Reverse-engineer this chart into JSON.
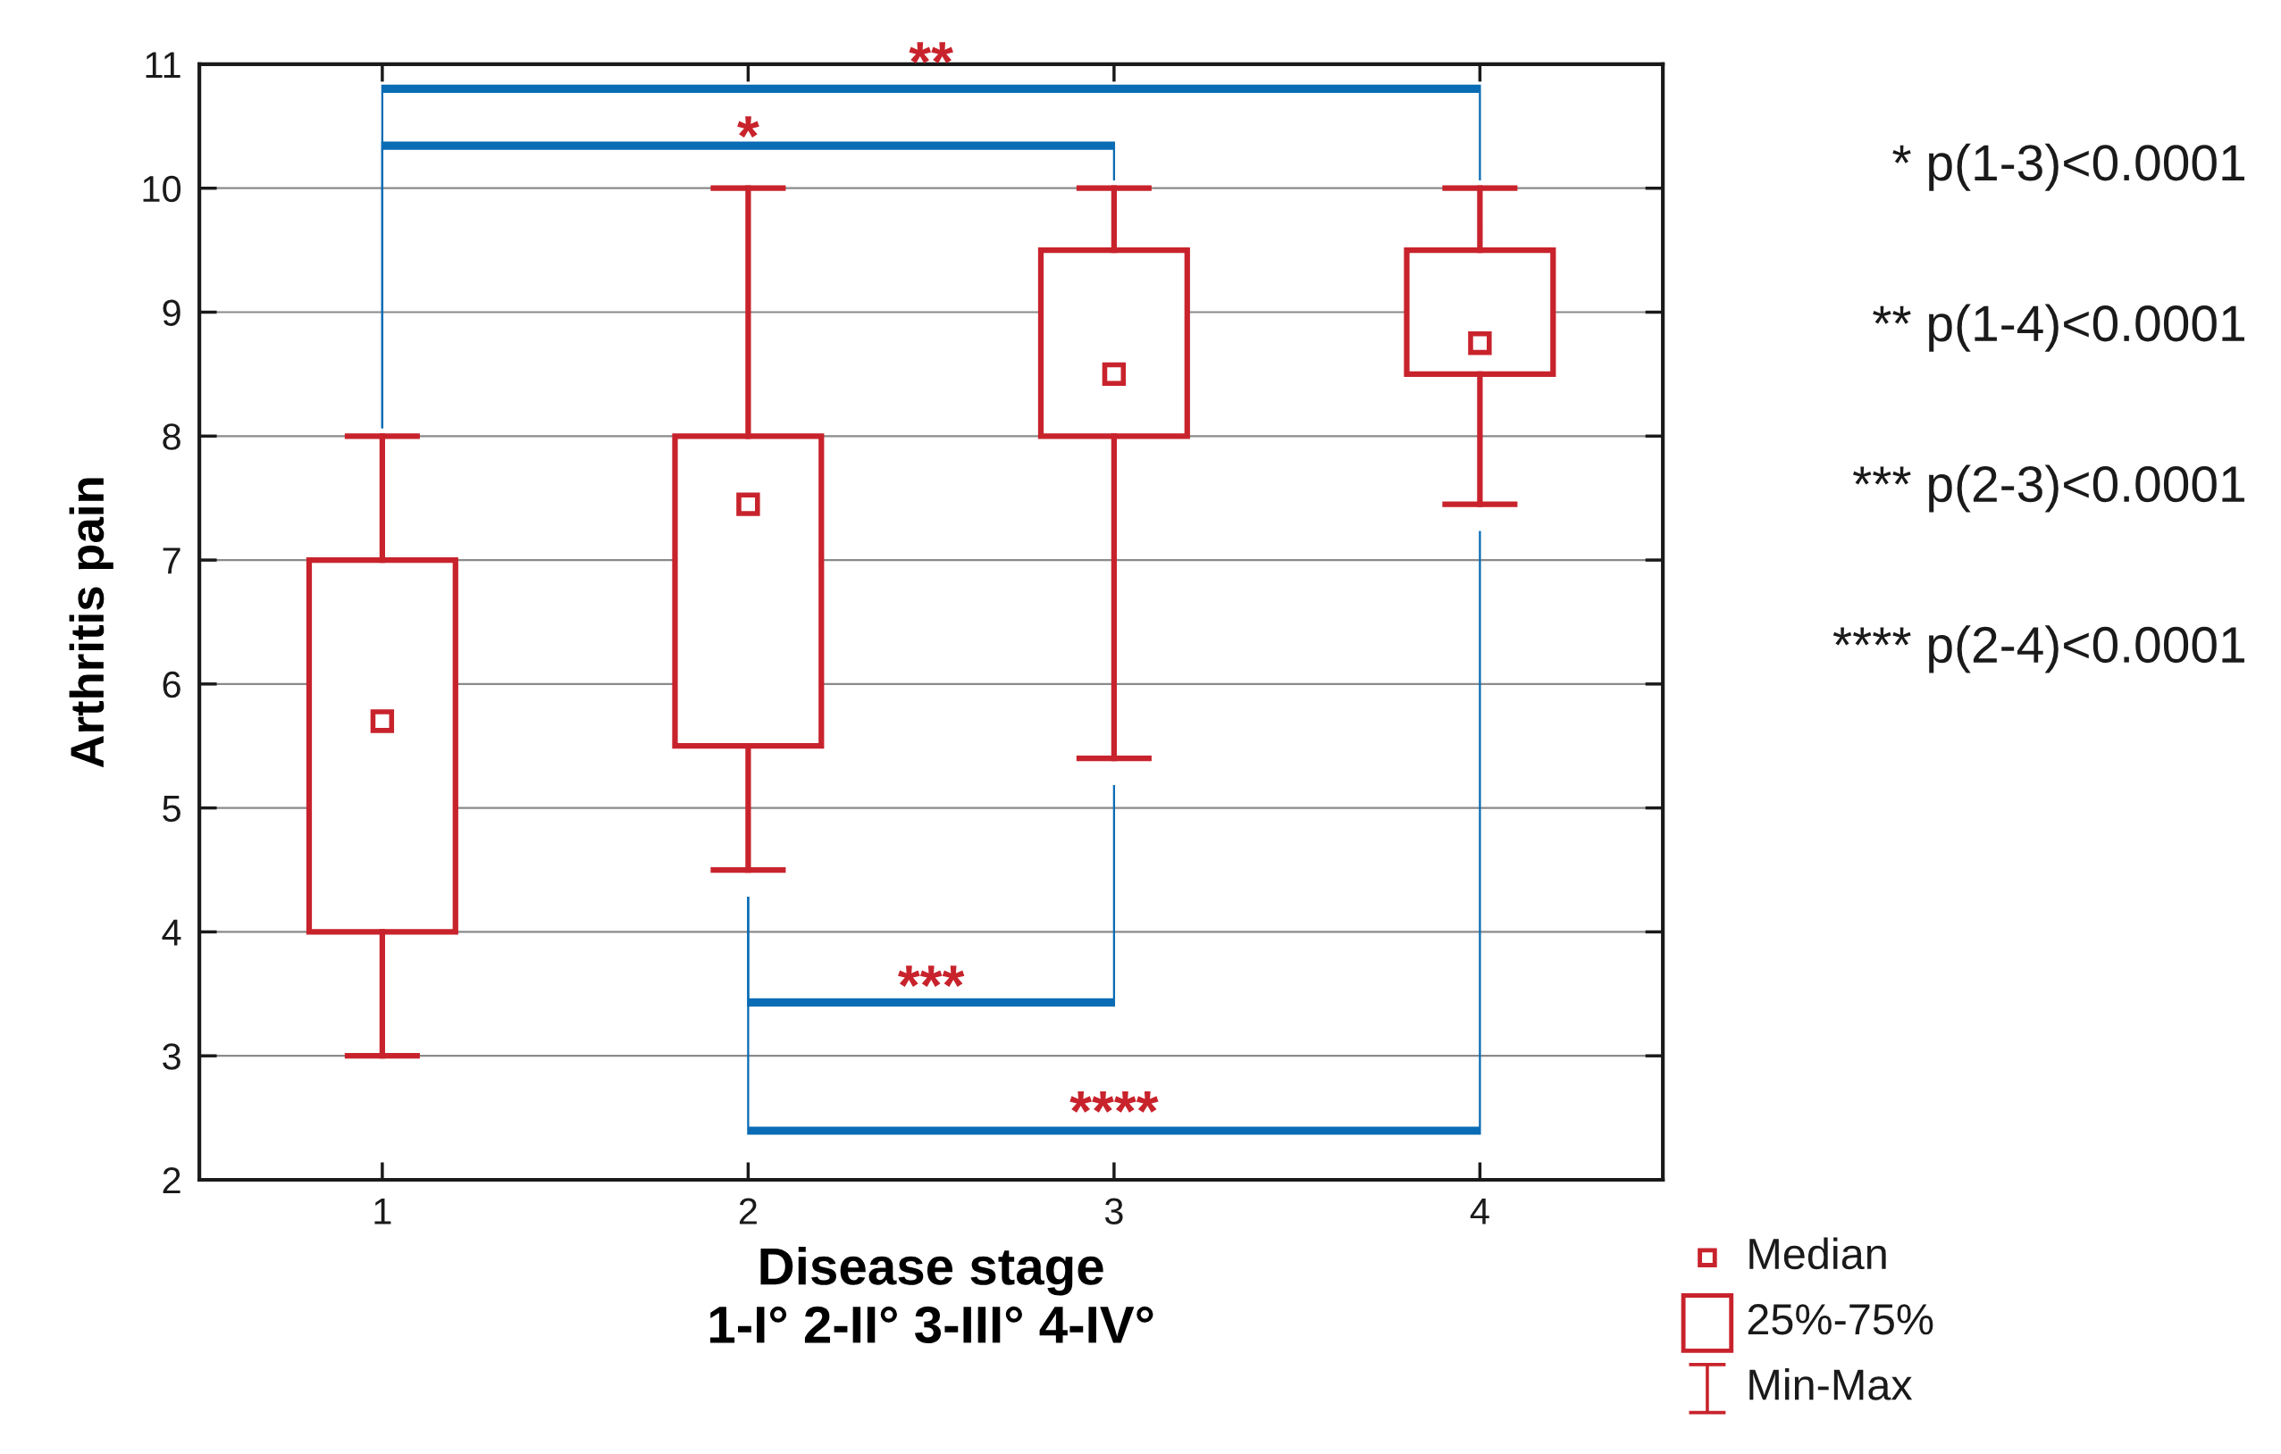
{
  "chart_data": {
    "type": "box",
    "xlabel": "Disease stage\n1-I° 2-II° 3-III° 4-IV°",
    "ylabel": "Arthritis pain",
    "categories": [
      "1",
      "2",
      "3",
      "4"
    ],
    "series": [
      {
        "color": "#c8232c",
        "boxes": [
          {
            "low": 3,
            "q1": 4,
            "median": 5.7,
            "q3": 7,
            "high": 8
          },
          {
            "low": 4.5,
            "q1": 5.5,
            "median": 7.45,
            "q3": 8,
            "high": 10
          },
          {
            "low": 5.4,
            "q1": 8,
            "median": 8.5,
            "q3": 9.5,
            "high": 10
          },
          {
            "low": 7.45,
            "q1": 8.5,
            "median": 8.75,
            "q3": 9.5,
            "high": 10
          }
        ]
      }
    ],
    "ylim": [
      2,
      11
    ],
    "yticks": [
      2,
      3,
      4,
      5,
      6,
      7,
      8,
      9,
      10,
      11
    ],
    "grid": "y",
    "annotations": [
      "*",
      "**",
      "***",
      "****",
      "* p(1-3)<0.0001",
      "** p(1-4)<0.0001",
      "*** p(2-3)<0.0001",
      "**** p(2-4)<0.0001",
      "Median",
      "25%-75%",
      "Min-Max"
    ]
  }
}
